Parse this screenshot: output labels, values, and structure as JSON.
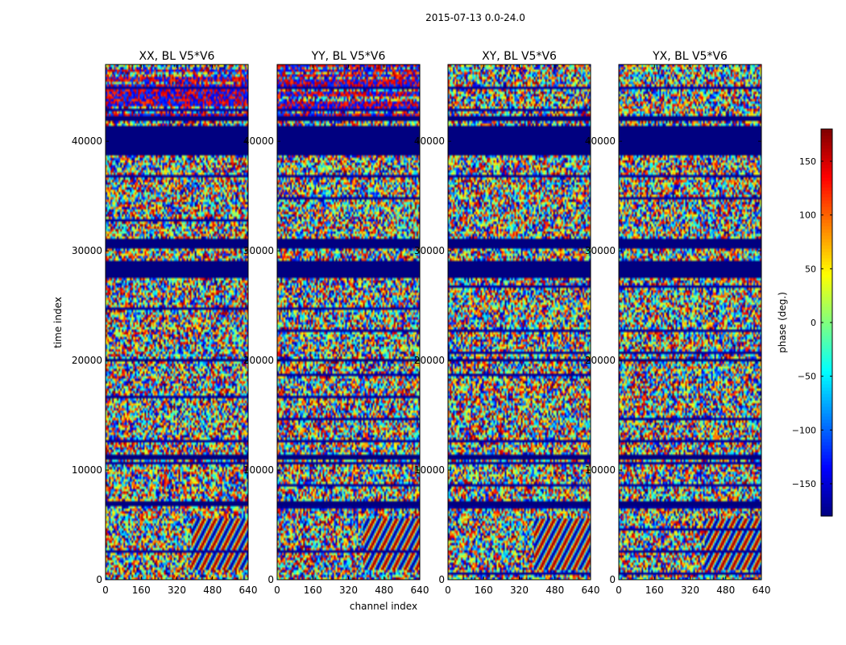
{
  "figure": {
    "suptitle": "2015-07-13 0.0-24.0",
    "ylabel": "time index",
    "xlabel": "channel index"
  },
  "chart_data": {
    "type": "heatmap",
    "x_range": [
      0,
      640
    ],
    "y_range": [
      0,
      47000
    ],
    "x_ticks": [
      0,
      160,
      320,
      480,
      640
    ],
    "y_ticks": [
      0,
      10000,
      20000,
      30000,
      40000
    ],
    "x_tick_labels": [
      "0",
      "160",
      "320",
      "480",
      "640"
    ],
    "y_tick_labels": [
      "0",
      "10000",
      "20000",
      "30000",
      "40000"
    ],
    "panels": [
      {
        "title": "XX, BL V5*V6"
      },
      {
        "title": "YY, BL V5*V6"
      },
      {
        "title": "XY, BL V5*V6"
      },
      {
        "title": "YX, BL V5*V6"
      }
    ],
    "colorbar": {
      "label": "phase (deg.)",
      "range": [
        -180,
        180
      ],
      "ticks": [
        -150,
        -100,
        -50,
        0,
        50,
        100,
        150
      ],
      "tick_labels": [
        "−150",
        "−100",
        "−50",
        "0",
        "50",
        "100",
        "150"
      ],
      "colormap": "jet"
    },
    "masked_bands": [
      [
        6800,
        7200
      ],
      [
        11000,
        11400
      ],
      [
        19900,
        20200
      ],
      [
        27500,
        29200
      ],
      [
        30300,
        31100
      ],
      [
        38800,
        41500
      ],
      [
        41900,
        42200
      ]
    ]
  }
}
